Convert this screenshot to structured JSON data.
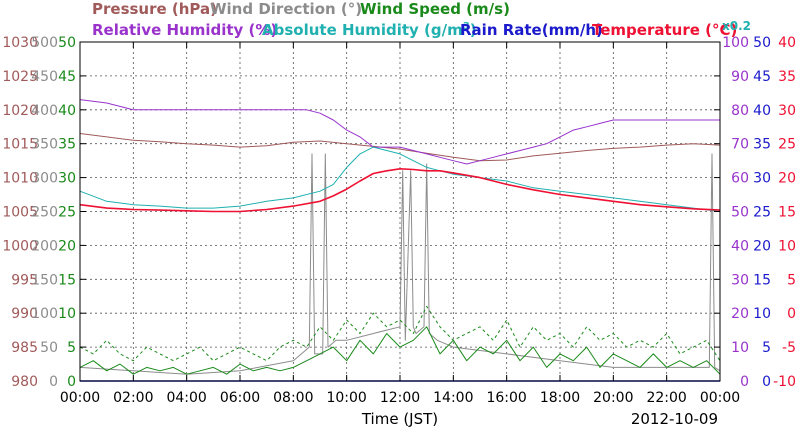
{
  "chart_data": {
    "type": "line",
    "date": "2012-10-09",
    "xlabel": "Time (JST)",
    "x_ticks": [
      "00:00",
      "02:00",
      "04:00",
      "06:00",
      "08:00",
      "10:00",
      "12:00",
      "14:00",
      "16:00",
      "18:00",
      "20:00",
      "22:00",
      "00:00"
    ],
    "legend": {
      "row1": [
        {
          "text": "Pressure (hPa)",
          "color": "#a05a5a"
        },
        {
          "text": "Wind Direction (°)",
          "color": "#8c8c8c"
        },
        {
          "text": "Wind Speed (m/s)",
          "color": "#1a8a1a"
        }
      ],
      "row2": [
        {
          "text": "Relative Humidity (%)",
          "color": "#9933cc"
        },
        {
          "text": "Absolute Humidity (g/m",
          "sup": "3",
          "tail": ")",
          "color": "#20b0b0"
        },
        {
          "text": "Rain Rate(mm/h)",
          "color": "#1a1acc"
        },
        {
          "text": "Temperature (°C)",
          "color": "#ee1133"
        }
      ],
      "scale_note": "x0.2"
    },
    "axes": {
      "pressure": {
        "ticks": [
          "980",
          "985",
          "990",
          "995",
          "1000",
          "1005",
          "1010",
          "1015",
          "1020",
          "1025",
          "1030"
        ],
        "range": [
          980,
          1030
        ],
        "color": "#a05a5a"
      },
      "wind_direction": {
        "ticks": [
          "0",
          "50",
          "100",
          "150",
          "200",
          "250",
          "300",
          "350",
          "400",
          "450",
          "500"
        ],
        "range": [
          0,
          500
        ],
        "color": "#8c8c8c"
      },
      "wind_speed": {
        "ticks": [
          "0",
          "5",
          "10",
          "15",
          "20",
          "25",
          "30",
          "35",
          "40",
          "45",
          "50"
        ],
        "range": [
          0,
          50
        ],
        "color": "#1a8a1a"
      },
      "relative_humidity": {
        "ticks": [
          "0",
          "10",
          "20",
          "30",
          "40",
          "50",
          "60",
          "70",
          "80",
          "90",
          "100"
        ],
        "range": [
          0,
          100
        ],
        "color": "#9933cc"
      },
      "rain_rate": {
        "ticks": [
          "0",
          "5",
          "10",
          "15",
          "20",
          "25",
          "30",
          "35",
          "40",
          "45",
          "50"
        ],
        "range": [
          0,
          50
        ],
        "color": "#1a1acc"
      },
      "temperature": {
        "ticks": [
          "-10",
          "-5",
          "0",
          "5",
          "10",
          "15",
          "20",
          "25",
          "30",
          "35",
          "40"
        ],
        "range": [
          -10,
          40
        ],
        "color": "#ee1133"
      }
    },
    "grid": true,
    "series": [
      {
        "name": "Pressure",
        "axis": "pressure",
        "color": "#a05a5a",
        "x": [
          0,
          1,
          2,
          3,
          4,
          5,
          6,
          7,
          8,
          9,
          10,
          11,
          12,
          13,
          14,
          15,
          16,
          17,
          18,
          19,
          20,
          21,
          22,
          23,
          24
        ],
        "values": [
          1016.5,
          1016,
          1015.5,
          1015.3,
          1015,
          1014.8,
          1014.5,
          1014.7,
          1015.2,
          1015.4,
          1015,
          1014.6,
          1014.2,
          1013.6,
          1013,
          1012.5,
          1012.6,
          1013.2,
          1013.6,
          1014,
          1014.3,
          1014.5,
          1014.8,
          1015,
          1014.8
        ]
      },
      {
        "name": "Relative Humidity",
        "axis": "relative_humidity",
        "color": "#9933cc",
        "x": [
          0,
          1,
          1.5,
          2,
          3,
          4,
          5,
          6,
          7,
          8,
          8.5,
          9,
          9.5,
          10,
          10.5,
          11,
          11.5,
          12,
          12.5,
          13,
          13.5,
          14,
          14.5,
          15,
          15.5,
          16,
          16.5,
          17,
          17.5,
          18,
          18.5,
          19,
          19.5,
          20,
          21,
          22,
          23,
          24
        ],
        "values": [
          83,
          82,
          81,
          80,
          80,
          80,
          80,
          80,
          80,
          80,
          80,
          79,
          77,
          74,
          72,
          69,
          69,
          69,
          68,
          67,
          66,
          65,
          64,
          65,
          66,
          67,
          68,
          69,
          70,
          72,
          74,
          75,
          76,
          77,
          77,
          77,
          77,
          77
        ]
      },
      {
        "name": "Absolute Humidity",
        "axis": "wind_speed",
        "color": "#20b0b0",
        "x": [
          0,
          1,
          2,
          3,
          4,
          5,
          6,
          7,
          8,
          9,
          9.5,
          10,
          10.5,
          11,
          11.5,
          12,
          12.5,
          13,
          13.5,
          14,
          15,
          16,
          17,
          18,
          19,
          20,
          21,
          22,
          23,
          24
        ],
        "values": [
          28,
          26.5,
          26,
          25.8,
          25.5,
          25.5,
          25.8,
          26.5,
          27,
          28,
          29,
          31.5,
          33.5,
          34.5,
          34,
          33.5,
          32.5,
          31.5,
          31,
          30.5,
          30,
          29.5,
          28.5,
          28,
          27.5,
          27,
          26.5,
          26,
          25.5,
          25
        ]
      },
      {
        "name": "Temperature",
        "axis": "temperature",
        "color": "#ee1133",
        "x": [
          0,
          1,
          2,
          3,
          4,
          5,
          6,
          7,
          8,
          9,
          9.5,
          10,
          10.5,
          11,
          11.5,
          12,
          12.5,
          13,
          13.5,
          14,
          15,
          16,
          17,
          18,
          19,
          20,
          21,
          22,
          23,
          24
        ],
        "values": [
          16,
          15.5,
          15.3,
          15.2,
          15.1,
          15,
          15,
          15.3,
          15.8,
          16.5,
          17.3,
          18.3,
          19.5,
          20.6,
          21,
          21.3,
          21.2,
          21,
          21,
          20.7,
          20,
          19,
          18.2,
          17.5,
          17,
          16.5,
          16,
          15.7,
          15.4,
          15.2
        ]
      },
      {
        "name": "Wind Speed",
        "axis": "wind_speed",
        "color": "#1a8a1a",
        "x": [
          0,
          0.5,
          1,
          1.5,
          2,
          2.5,
          3,
          3.5,
          4,
          4.5,
          5,
          5.5,
          6,
          6.5,
          7,
          7.5,
          8,
          8.5,
          9,
          9.5,
          10,
          10.5,
          11,
          11.5,
          12,
          12.5,
          13,
          13.5,
          14,
          14.5,
          15,
          15.5,
          16,
          16.5,
          17,
          17.5,
          18,
          18.5,
          19,
          19.5,
          20,
          20.5,
          21,
          21.5,
          22,
          22.5,
          23,
          23.5,
          24
        ],
        "values": [
          2,
          3,
          1.5,
          2.5,
          1,
          2,
          1.5,
          2,
          1,
          1.5,
          2,
          1,
          2.5,
          1.5,
          2,
          1.5,
          2,
          3,
          4,
          5,
          3,
          6,
          4,
          7,
          5,
          6,
          8,
          4,
          6,
          3,
          5,
          4,
          6,
          3,
          5,
          2,
          4,
          3,
          5,
          2,
          4,
          3,
          2,
          4,
          2,
          3,
          2,
          3,
          1
        ]
      },
      {
        "name": "Wind Gust",
        "axis": "wind_speed",
        "color": "#1a8a1a",
        "dashed": true,
        "x": [
          0,
          0.5,
          1,
          1.5,
          2,
          2.5,
          3,
          3.5,
          4,
          4.5,
          5,
          5.5,
          6,
          6.5,
          7,
          7.5,
          8,
          8.5,
          9,
          9.5,
          10,
          10.5,
          11,
          11.5,
          12,
          12.5,
          13,
          13.5,
          14,
          14.5,
          15,
          15.5,
          16,
          16.5,
          17,
          17.5,
          18,
          18.5,
          19,
          19.5,
          20,
          20.5,
          21,
          21.5,
          22,
          22.5,
          23,
          23.5,
          24
        ],
        "values": [
          5,
          4,
          6,
          4,
          3,
          5,
          4,
          3,
          4,
          5,
          3,
          4,
          5,
          4,
          3,
          5,
          6,
          5,
          8,
          6,
          9,
          7,
          10,
          8,
          9,
          7,
          11,
          8,
          6,
          7,
          8,
          6,
          9,
          5,
          8,
          6,
          7,
          5,
          8,
          6,
          7,
          5,
          6,
          5,
          7,
          4,
          5,
          6,
          3
        ]
      },
      {
        "name": "Wind Direction",
        "axis": "wind_direction",
        "color": "#8c8c8c",
        "x": [
          0,
          2,
          4,
          6,
          8,
          8.6,
          8.7,
          8.8,
          9.1,
          9.2,
          9.3,
          9.6,
          10,
          11,
          12,
          12.1,
          12.2,
          12.4,
          12.5,
          12.6,
          12.9,
          13,
          13.1,
          13.4,
          14,
          16,
          18,
          20,
          22,
          23.6,
          23.7,
          23.8,
          24
        ],
        "values": [
          20,
          15,
          10,
          15,
          30,
          50,
          335,
          40,
          40,
          335,
          50,
          60,
          60,
          70,
          80,
          310,
          60,
          310,
          80,
          70,
          80,
          320,
          70,
          60,
          50,
          40,
          30,
          20,
          20,
          20,
          335,
          20,
          15
        ]
      },
      {
        "name": "Rain Rate",
        "axis": "rain_rate",
        "color": "#1a1acc",
        "x": [
          0,
          24
        ],
        "values": [
          0,
          0
        ]
      }
    ]
  }
}
